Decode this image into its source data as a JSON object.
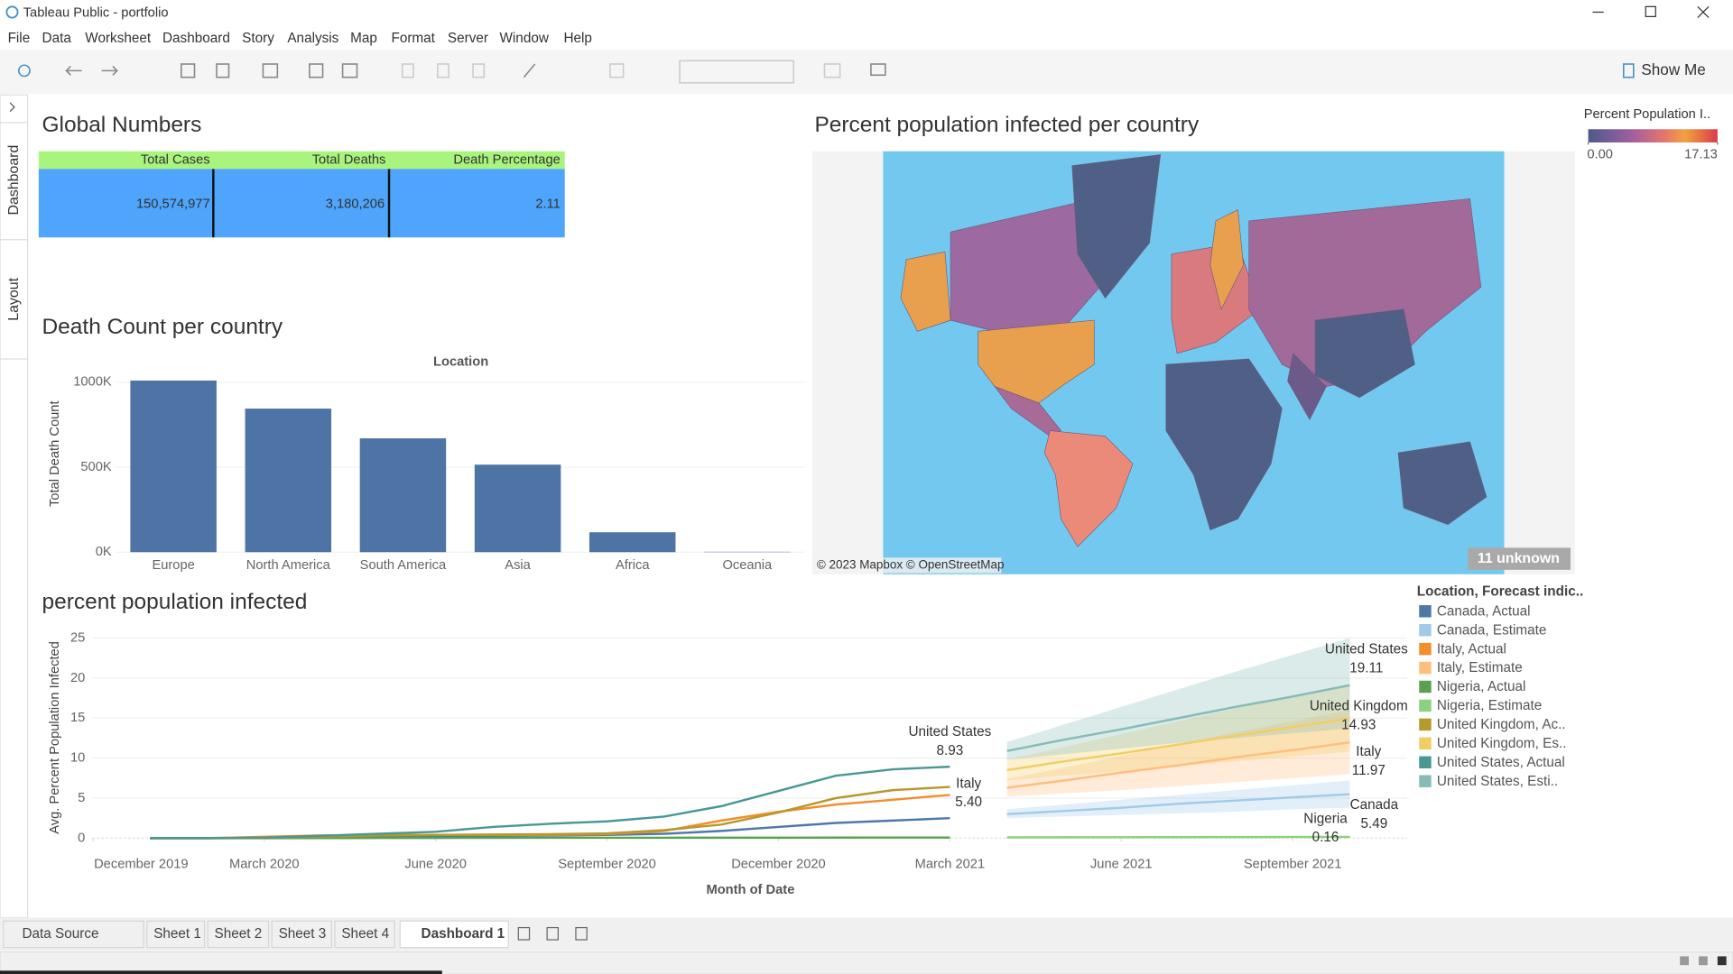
{
  "window": {
    "title": "Tableau Public - portfolio"
  },
  "menu": [
    "File",
    "Data",
    "Worksheet",
    "Dashboard",
    "Story",
    "Analysis",
    "Map",
    "Format",
    "Server",
    "Window",
    "Help"
  ],
  "toolbar": {
    "show_me": "Show Me"
  },
  "side_tabs": [
    "Dashboard",
    "Layout"
  ],
  "global_numbers": {
    "title": "Global Numbers",
    "table": {
      "header": [
        "Total Cases",
        "Total Deaths",
        "Death Percentage"
      ],
      "rows": [
        [
          "150,574,977",
          "3,180,206",
          "2.11"
        ]
      ]
    }
  },
  "map": {
    "title": "Percent population infected per country",
    "legend_title": "Percent Population I..",
    "legend_ticks": [
      {
        "value": 0,
        "label": "0.00"
      },
      {
        "value": 17.13,
        "label": "17.13"
      }
    ],
    "attribution": "© 2023 Mapbox © OpenStreetMap",
    "unknown": "11 unknown"
  },
  "chart_data": [
    {
      "type": "bar",
      "title": "Death Count per country",
      "x_label": "Location",
      "y_label": "Total Death Count",
      "color": "#4e74a6",
      "categories": [
        "Europe",
        "North America",
        "South America",
        "Asia",
        "Africa",
        "Oceania"
      ],
      "values": [
        1010000,
        845000,
        670000,
        515000,
        117000,
        2000
      ],
      "ylim": [
        0,
        1040000
      ],
      "yticks": [
        {
          "value": 0,
          "label": "0K"
        },
        {
          "value": 500000,
          "label": "500K"
        },
        {
          "value": 1000000,
          "label": "1000K"
        }
      ]
    },
    {
      "type": "line",
      "title": "percent population infected",
      "x_label": "Month of Date",
      "y_label": "Avg. Percent Population Infected",
      "legend_title": "Location, Forecast indic..",
      "grid": true,
      "xlim": [
        "2019-12",
        "2021-11"
      ],
      "xticks": [
        {
          "value": "2019-12",
          "label": "December 2019"
        },
        {
          "value": "2020-03",
          "label": "March 2020"
        },
        {
          "value": "2020-06",
          "label": "June 2020"
        },
        {
          "value": "2020-09",
          "label": "September 2020"
        },
        {
          "value": "2020-12",
          "label": "December 2020"
        },
        {
          "value": "2021-03",
          "label": "March 2021"
        },
        {
          "value": "2021-06",
          "label": "June 2021"
        },
        {
          "value": "2021-09",
          "label": "September 2021"
        }
      ],
      "ylim": [
        0,
        25.8
      ],
      "yticks": [
        0,
        5,
        10,
        15,
        20,
        25
      ],
      "series": [
        {
          "name": "Canada, Actual",
          "color": "#4e79a7",
          "x": [
            "2020-01",
            "2020-02",
            "2020-03",
            "2020-04",
            "2020-05",
            "2020-06",
            "2020-07",
            "2020-08",
            "2020-09",
            "2020-10",
            "2020-11",
            "2020-12",
            "2021-01",
            "2021-02",
            "2021-03"
          ],
          "values": [
            0,
            0,
            0.02,
            0.14,
            0.23,
            0.27,
            0.3,
            0.33,
            0.4,
            0.55,
            0.9,
            1.4,
            1.9,
            2.2,
            2.5
          ]
        },
        {
          "name": "Canada, Estimate",
          "color": "#a0cbe8",
          "label": "Canada",
          "x": [
            "2021-04",
            "2021-05",
            "2021-06",
            "2021-07",
            "2021-08",
            "2021-09",
            "2021-10"
          ],
          "values": [
            3.0,
            3.4,
            3.8,
            4.3,
            4.7,
            5.1,
            5.49
          ],
          "value_labels": [
            null,
            null,
            null,
            null,
            null,
            null,
            "5.49"
          ],
          "lower": [
            2.5,
            2.7,
            2.9,
            3.1,
            3.3,
            3.6,
            3.8
          ],
          "upper": [
            3.6,
            4.2,
            4.8,
            5.4,
            6.0,
            6.6,
            7.2
          ]
        },
        {
          "name": "Italy, Actual",
          "color": "#f28e2b",
          "label": "Italy",
          "x": [
            "2020-01",
            "2020-02",
            "2020-03",
            "2020-04",
            "2020-05",
            "2020-06",
            "2020-07",
            "2020-08",
            "2020-09",
            "2020-10",
            "2020-11",
            "2020-12",
            "2021-01",
            "2021-02",
            "2021-03"
          ],
          "values": [
            0,
            0,
            0.17,
            0.34,
            0.38,
            0.4,
            0.41,
            0.42,
            0.5,
            0.9,
            2.2,
            3.3,
            4.2,
            4.8,
            5.4
          ],
          "value_labels": [
            null,
            null,
            null,
            null,
            null,
            null,
            null,
            null,
            null,
            null,
            null,
            null,
            null,
            null,
            "5.40"
          ]
        },
        {
          "name": "Italy, Estimate",
          "color": "#ffbe7d",
          "label": "Italy",
          "x": [
            "2021-04",
            "2021-05",
            "2021-06",
            "2021-07",
            "2021-08",
            "2021-09",
            "2021-10"
          ],
          "values": [
            6.3,
            7.2,
            8.2,
            9.1,
            10.1,
            11.0,
            11.97
          ],
          "value_labels": [
            null,
            null,
            null,
            null,
            null,
            null,
            "11.97"
          ],
          "lower": [
            5.2,
            5.6,
            6.0,
            6.5,
            7.0,
            7.5,
            8.0
          ],
          "upper": [
            7.4,
            8.8,
            10.3,
            11.8,
            13.2,
            14.6,
            16.0
          ]
        },
        {
          "name": "Nigeria, Actual",
          "color": "#59a14f",
          "x": [
            "2020-01",
            "2020-02",
            "2020-03",
            "2020-04",
            "2020-05",
            "2020-06",
            "2020-07",
            "2020-08",
            "2020-09",
            "2020-10",
            "2020-11",
            "2020-12",
            "2021-01",
            "2021-02",
            "2021-03"
          ],
          "values": [
            0,
            0,
            0,
            0.01,
            0.02,
            0.03,
            0.04,
            0.05,
            0.05,
            0.05,
            0.06,
            0.06,
            0.07,
            0.08,
            0.08
          ]
        },
        {
          "name": "Nigeria, Estimate",
          "color": "#8cd17d",
          "label": "Nigeria",
          "x": [
            "2021-04",
            "2021-05",
            "2021-06",
            "2021-07",
            "2021-08",
            "2021-09",
            "2021-10"
          ],
          "values": [
            0.1,
            0.11,
            0.12,
            0.13,
            0.14,
            0.15,
            0.16
          ],
          "value_labels": [
            null,
            null,
            null,
            null,
            null,
            null,
            "0.16"
          ],
          "lower": [
            0.08,
            0.08,
            0.09,
            0.09,
            0.1,
            0.1,
            0.11
          ],
          "upper": [
            0.12,
            0.14,
            0.15,
            0.17,
            0.18,
            0.2,
            0.21
          ]
        },
        {
          "name": "United Kingdom, Ac..",
          "color": "#b6992d",
          "x": [
            "2020-01",
            "2020-02",
            "2020-03",
            "2020-04",
            "2020-05",
            "2020-06",
            "2020-07",
            "2020-08",
            "2020-09",
            "2020-10",
            "2020-11",
            "2020-12",
            "2021-01",
            "2021-02",
            "2021-03"
          ],
          "values": [
            0,
            0,
            0.04,
            0.2,
            0.35,
            0.4,
            0.45,
            0.5,
            0.6,
            1.0,
            1.7,
            3.2,
            5.0,
            6.0,
            6.4
          ]
        },
        {
          "name": "United Kingdom, Es..",
          "color": "#f1ce63",
          "label": "United Kingdom",
          "x": [
            "2021-04",
            "2021-05",
            "2021-06",
            "2021-07",
            "2021-08",
            "2021-09",
            "2021-10"
          ],
          "values": [
            8.5,
            9.6,
            10.6,
            11.7,
            12.8,
            13.9,
            14.93
          ],
          "value_labels": [
            null,
            null,
            null,
            null,
            null,
            null,
            "14.93"
          ],
          "lower": [
            7.2,
            7.8,
            8.4,
            9.0,
            9.6,
            10.2,
            10.8
          ],
          "upper": [
            9.8,
            11.4,
            13.0,
            14.6,
            16.2,
            17.8,
            19.1
          ]
        },
        {
          "name": "United States, Actual",
          "color": "#499894",
          "label": "United States",
          "x": [
            "2020-01",
            "2020-02",
            "2020-03",
            "2020-04",
            "2020-05",
            "2020-06",
            "2020-07",
            "2020-08",
            "2020-09",
            "2020-10",
            "2020-11",
            "2020-12",
            "2021-01",
            "2021-02",
            "2021-03"
          ],
          "values": [
            0,
            0,
            0.06,
            0.3,
            0.55,
            0.8,
            1.4,
            1.8,
            2.1,
            2.7,
            4.0,
            5.9,
            7.8,
            8.6,
            8.93
          ],
          "value_labels": [
            null,
            null,
            null,
            null,
            null,
            null,
            null,
            null,
            null,
            null,
            null,
            null,
            null,
            null,
            "8.93"
          ]
        },
        {
          "name": "United States, Esti..",
          "color": "#86bcb6",
          "label": "United States",
          "x": [
            "2021-04",
            "2021-05",
            "2021-06",
            "2021-07",
            "2021-08",
            "2021-09",
            "2021-10"
          ],
          "values": [
            10.9,
            12.3,
            13.6,
            15.0,
            16.4,
            17.7,
            19.11
          ],
          "value_labels": [
            null,
            null,
            null,
            null,
            null,
            null,
            "19.11"
          ],
          "lower": [
            9.8,
            10.5,
            11.2,
            11.9,
            12.5,
            13.1,
            13.7
          ],
          "upper": [
            12.0,
            14.2,
            16.4,
            18.6,
            20.8,
            22.9,
            25.0
          ]
        }
      ]
    }
  ],
  "sheet_tabs": [
    "Data Source",
    "Sheet 1",
    "Sheet 2",
    "Sheet 3",
    "Sheet 4",
    "Dashboard 1"
  ]
}
